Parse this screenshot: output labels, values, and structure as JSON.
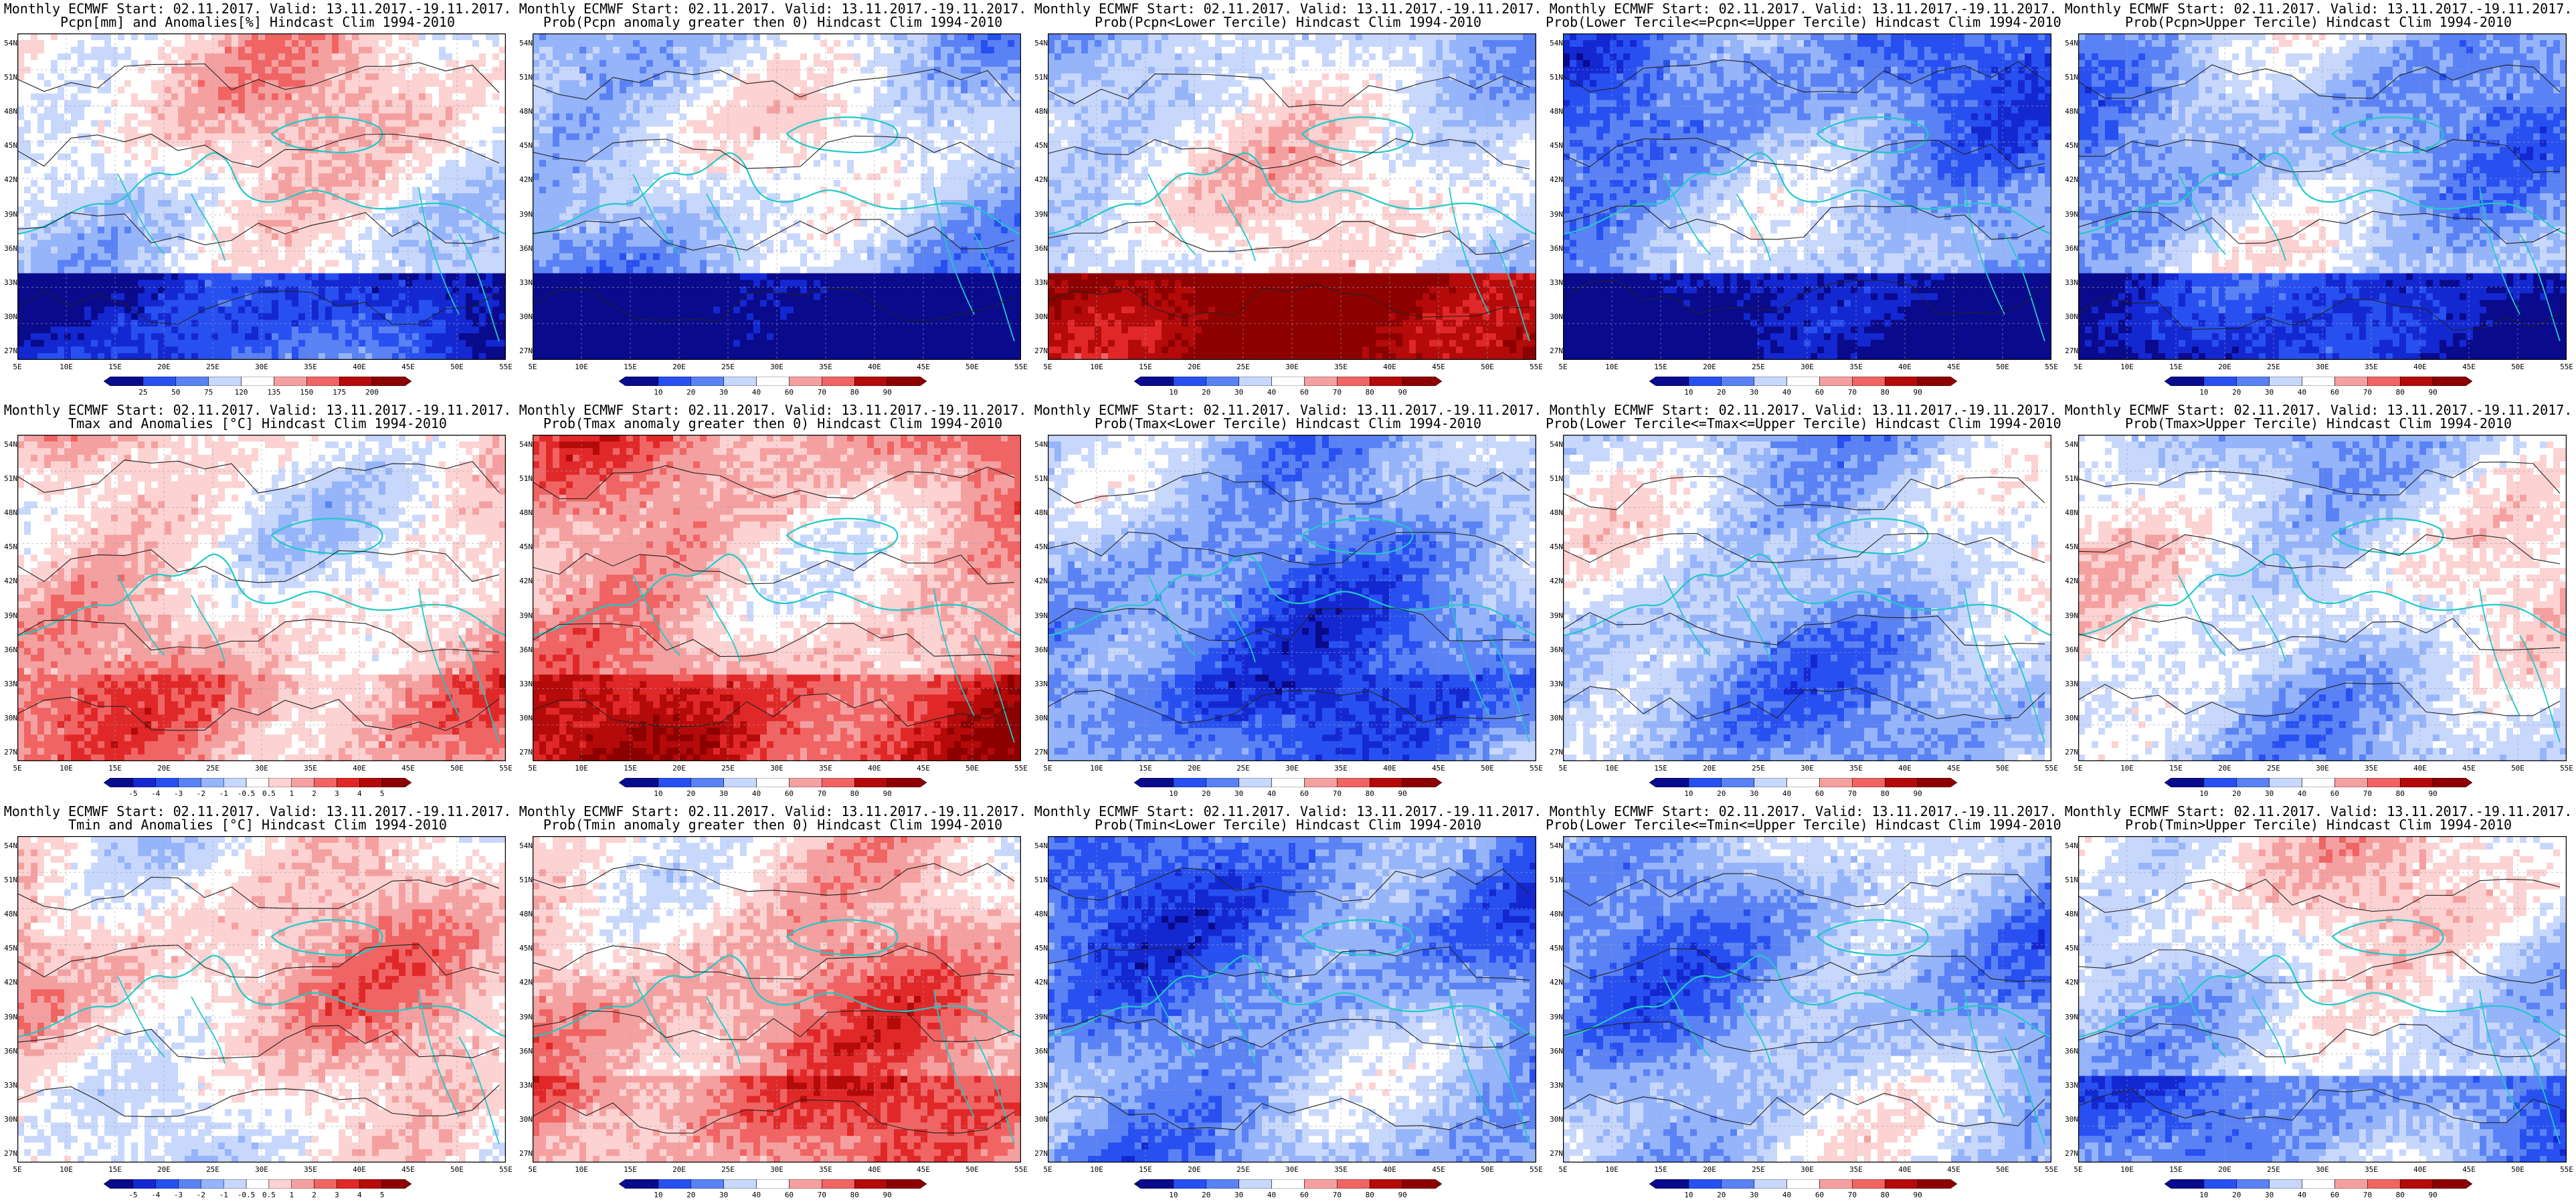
{
  "title_line1": "Monthly ECMWF Start: 02.11.2017. Valid: 13.11.2017.-19.11.2017.",
  "lat_ticks": [
    "54N",
    "51N",
    "48N",
    "45N",
    "42N",
    "39N",
    "36N",
    "33N",
    "30N",
    "27N"
  ],
  "lon_ticks": [
    "5E",
    "10E",
    "15E",
    "20E",
    "25E",
    "30E",
    "35E",
    "40E",
    "45E",
    "50E",
    "55E"
  ],
  "colors": {
    "ramp": [
      "#0a0a8c",
      "#1428d2",
      "#2850f0",
      "#5a82f5",
      "#96b4fa",
      "#c8d7fc",
      "#ffffff",
      "#fcd2d2",
      "#f5a0a0",
      "#f06464",
      "#e12828",
      "#b40a0a",
      "#8c0000"
    ],
    "coast": "#22c8c8",
    "contour": "#222222"
  },
  "colorbars": {
    "precip_anom": [
      "25",
      "50",
      "75",
      "120",
      "135",
      "150",
      "175",
      "200"
    ],
    "temp_anom": [
      "-5",
      "-4",
      "-3",
      "-2",
      "-1",
      "-0.5",
      "0.5",
      "1",
      "2",
      "3",
      "4",
      "5"
    ],
    "prob": [
      "10",
      "20",
      "30",
      "40",
      "60",
      "70",
      "80",
      "90"
    ]
  },
  "panels": [
    {
      "id": "pcpn-anom",
      "title2": "Pcpn[mm] and Anomalies[%] Hindcast Clim 1994-2010",
      "bar": "precip_anom",
      "bias": 0.05,
      "seed": 11,
      "warmsouth": 0,
      "coldsouth": 0.55
    },
    {
      "id": "pcpn-prob-gt0",
      "title2": "Prob(Pcpn anomaly greater then 0) Hindcast Clim 1994-2010",
      "bar": "prob",
      "bias": -0.25,
      "seed": 12,
      "warmsouth": 0,
      "coldsouth": 0.6
    },
    {
      "id": "pcpn-lower",
      "title2": "Prob(Pcpn<Lower Tercile) Hindcast Clim 1994-2010",
      "bar": "prob",
      "bias": -0.1,
      "seed": 13,
      "warmsouth": 0.85,
      "coldsouth": 0
    },
    {
      "id": "pcpn-middle",
      "title2": "Prob(Lower Tercile<=Pcpn<=Upper Tercile) Hindcast Clim 1994-2010",
      "bar": "prob",
      "bias": -0.45,
      "seed": 14,
      "warmsouth": 0,
      "coldsouth": 0.5
    },
    {
      "id": "pcpn-upper",
      "title2": "Prob(Pcpn>Upper Tercile) Hindcast Clim 1994-2010",
      "bar": "prob",
      "bias": -0.3,
      "seed": 15,
      "warmsouth": 0,
      "coldsouth": 0.5
    },
    {
      "id": "tmax-anom",
      "title2": "Tmax and Anomalies [°C] Hindcast Clim 1994-2010",
      "bar": "temp_anom",
      "bias": 0.15,
      "seed": 21,
      "warmsouth": 0.1,
      "coldsouth": 0
    },
    {
      "id": "tmax-prob-gt0",
      "title2": "Prob(Tmax anomaly greater then 0) Hindcast Clim 1994-2010",
      "bar": "prob",
      "bias": 0.35,
      "seed": 22,
      "warmsouth": 0.2,
      "coldsouth": 0
    },
    {
      "id": "tmax-lower",
      "title2": "Prob(Tmax<Lower Tercile) Hindcast Clim 1994-2010",
      "bar": "prob",
      "bias": -0.5,
      "seed": 23,
      "warmsouth": 0,
      "coldsouth": 0.1
    },
    {
      "id": "tmax-middle",
      "title2": "Prob(Lower Tercile<=Tmax<=Upper Tercile) Hindcast Clim 1994-2010",
      "bar": "prob",
      "bias": -0.3,
      "seed": 24,
      "warmsouth": 0,
      "coldsouth": 0
    },
    {
      "id": "tmax-upper",
      "title2": "Prob(Tmax>Upper Tercile) Hindcast Clim 1994-2010",
      "bar": "prob",
      "bias": -0.15,
      "seed": 25,
      "warmsouth": 0,
      "coldsouth": 0
    },
    {
      "id": "tmin-anom",
      "title2": "Tmin and Anomalies [°C] Hindcast Clim 1994-2010",
      "bar": "temp_anom",
      "bias": 0.15,
      "seed": 31,
      "warmsouth": 0,
      "coldsouth": 0
    },
    {
      "id": "tmin-prob-gt0",
      "title2": "Prob(Tmin anomaly greater then 0) Hindcast Clim 1994-2010",
      "bar": "prob",
      "bias": 0.3,
      "seed": 32,
      "warmsouth": 0.15,
      "coldsouth": 0
    },
    {
      "id": "tmin-lower",
      "title2": "Prob(Tmin<Lower Tercile) Hindcast Clim 1994-2010",
      "bar": "prob",
      "bias": -0.5,
      "seed": 33,
      "warmsouth": 0,
      "coldsouth": 0
    },
    {
      "id": "tmin-middle",
      "title2": "Prob(Lower Tercile<=Tmin<=Upper Tercile) Hindcast Clim 1994-2010",
      "bar": "prob",
      "bias": -0.35,
      "seed": 34,
      "warmsouth": 0,
      "coldsouth": 0
    },
    {
      "id": "tmin-upper",
      "title2": "Prob(Tmin>Upper Tercile) Hindcast Clim 1994-2010",
      "bar": "prob",
      "bias": -0.05,
      "seed": 35,
      "warmsouth": 0,
      "coldsouth": 0.3
    }
  ]
}
